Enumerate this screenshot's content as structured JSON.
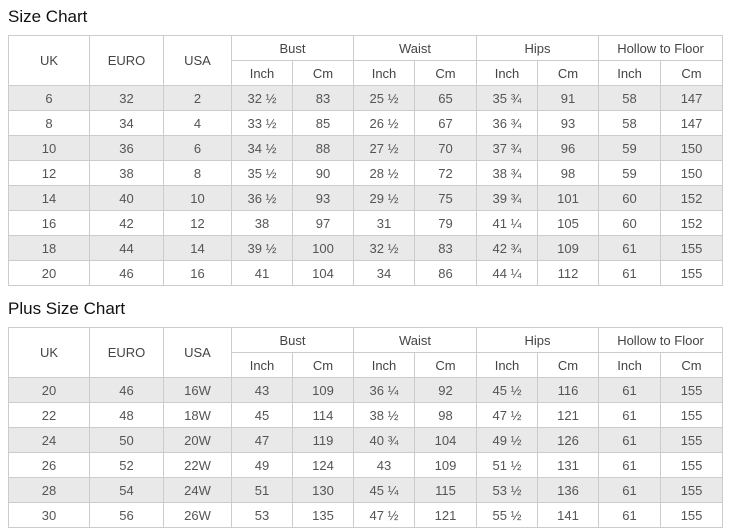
{
  "accent_colors": {
    "row_shade": "#e9e9e9",
    "border": "#cccccc",
    "text": "#555555"
  },
  "chart_data": [
    {
      "type": "table",
      "title": "Size Chart",
      "columns": [
        {
          "label": "UK"
        },
        {
          "label": "EURO"
        },
        {
          "label": "USA"
        },
        {
          "label": "Bust",
          "sub": [
            "Inch",
            "Cm"
          ]
        },
        {
          "label": "Waist",
          "sub": [
            "Inch",
            "Cm"
          ]
        },
        {
          "label": "Hips",
          "sub": [
            "Inch",
            "Cm"
          ]
        },
        {
          "label": "Hollow to Floor",
          "sub": [
            "Inch",
            "Cm"
          ]
        }
      ],
      "rows": [
        [
          "6",
          "32",
          "2",
          "32 ½",
          "83",
          "25 ½",
          "65",
          "35 ¾",
          "91",
          "58",
          "147"
        ],
        [
          "8",
          "34",
          "4",
          "33 ½",
          "85",
          "26 ½",
          "67",
          "36 ¾",
          "93",
          "58",
          "147"
        ],
        [
          "10",
          "36",
          "6",
          "34 ½",
          "88",
          "27 ½",
          "70",
          "37 ¾",
          "96",
          "59",
          "150"
        ],
        [
          "12",
          "38",
          "8",
          "35 ½",
          "90",
          "28 ½",
          "72",
          "38 ¾",
          "98",
          "59",
          "150"
        ],
        [
          "14",
          "40",
          "10",
          "36 ½",
          "93",
          "29 ½",
          "75",
          "39 ¾",
          "101",
          "60",
          "152"
        ],
        [
          "16",
          "42",
          "12",
          "38",
          "97",
          "31",
          "79",
          "41 ¼",
          "105",
          "60",
          "152"
        ],
        [
          "18",
          "44",
          "14",
          "39 ½",
          "100",
          "32 ½",
          "83",
          "42 ¾",
          "109",
          "61",
          "155"
        ],
        [
          "20",
          "46",
          "16",
          "41",
          "104",
          "34",
          "86",
          "44 ¼",
          "112",
          "61",
          "155"
        ]
      ]
    },
    {
      "type": "table",
      "title": "Plus Size Chart",
      "columns": [
        {
          "label": "UK"
        },
        {
          "label": "EURO"
        },
        {
          "label": "USA"
        },
        {
          "label": "Bust",
          "sub": [
            "Inch",
            "Cm"
          ]
        },
        {
          "label": "Waist",
          "sub": [
            "Inch",
            "Cm"
          ]
        },
        {
          "label": "Hips",
          "sub": [
            "Inch",
            "Cm"
          ]
        },
        {
          "label": "Hollow to Floor",
          "sub": [
            "Inch",
            "Cm"
          ]
        }
      ],
      "rows": [
        [
          "20",
          "46",
          "16W",
          "43",
          "109",
          "36 ¼",
          "92",
          "45 ½",
          "116",
          "61",
          "155"
        ],
        [
          "22",
          "48",
          "18W",
          "45",
          "114",
          "38 ½",
          "98",
          "47 ½",
          "121",
          "61",
          "155"
        ],
        [
          "24",
          "50",
          "20W",
          "47",
          "119",
          "40 ¾",
          "104",
          "49 ½",
          "126",
          "61",
          "155"
        ],
        [
          "26",
          "52",
          "22W",
          "49",
          "124",
          "43",
          "109",
          "51 ½",
          "131",
          "61",
          "155"
        ],
        [
          "28",
          "54",
          "24W",
          "51",
          "130",
          "45 ¼",
          "115",
          "53 ½",
          "136",
          "61",
          "155"
        ],
        [
          "30",
          "56",
          "26W",
          "53",
          "135",
          "47 ½",
          "121",
          "55 ½",
          "141",
          "61",
          "155"
        ]
      ]
    }
  ]
}
